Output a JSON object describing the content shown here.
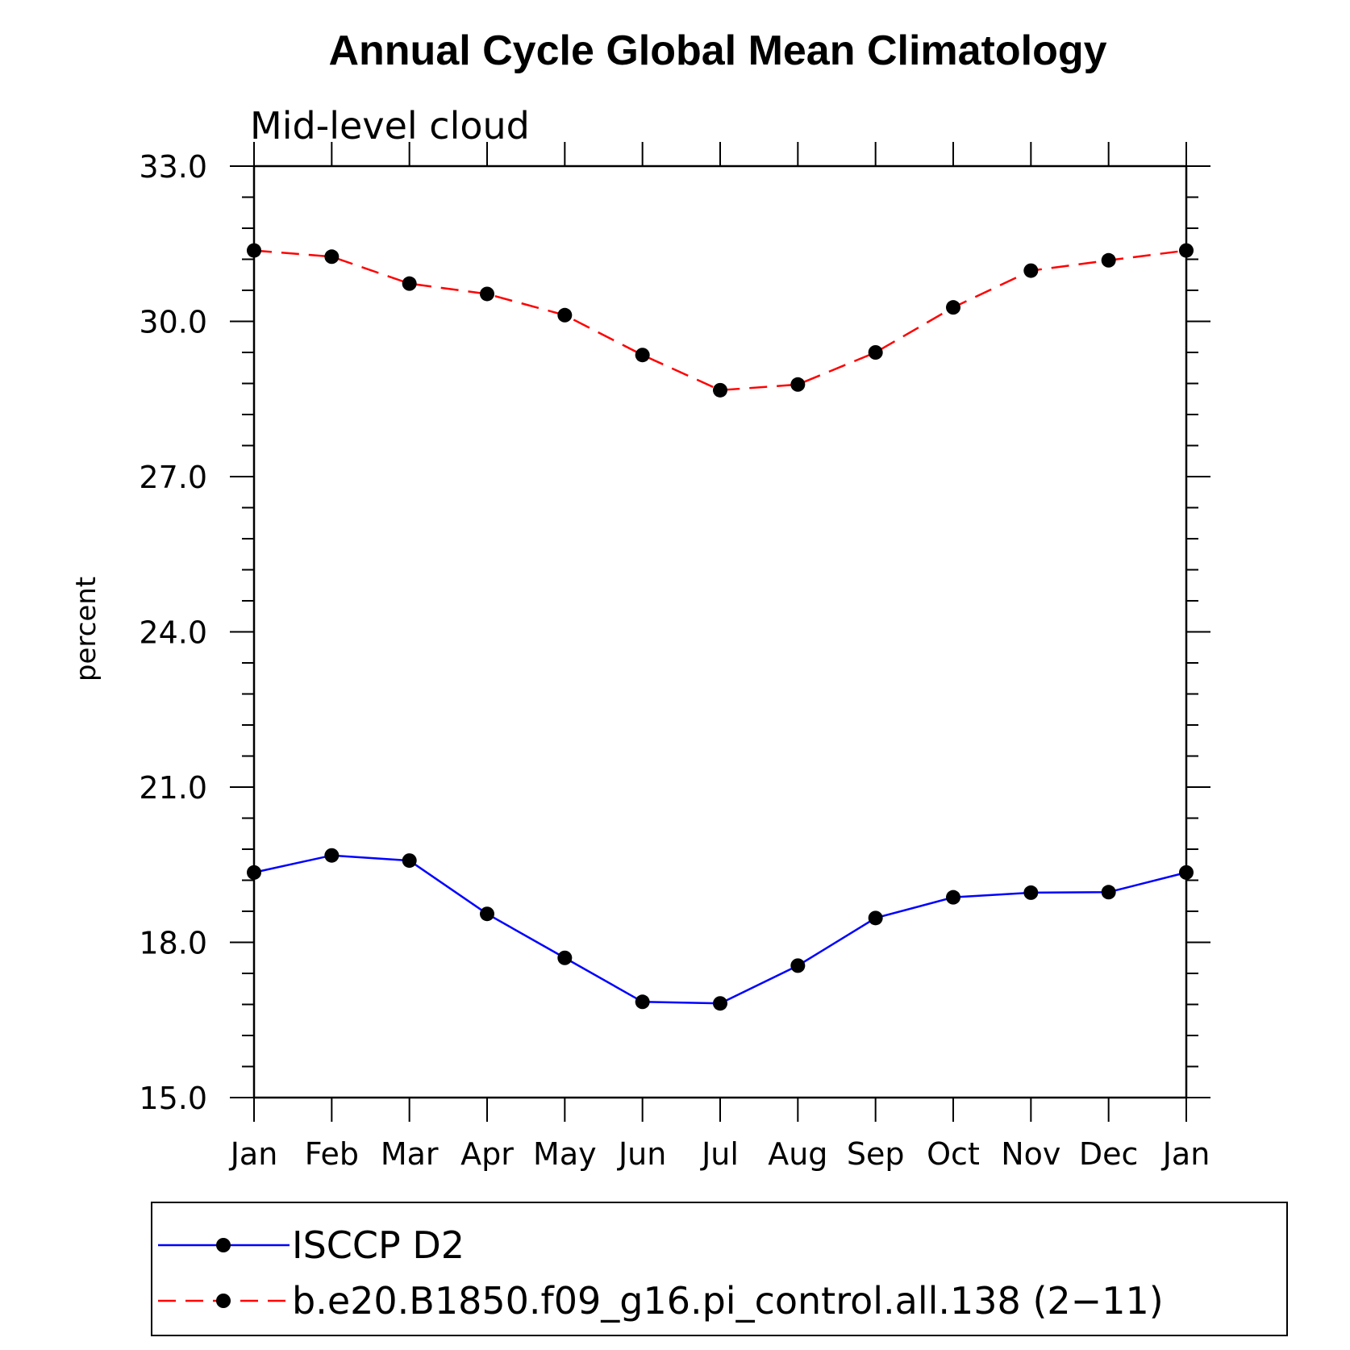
{
  "chart_data": {
    "type": "line",
    "title": "Annual Cycle Global Mean Climatology",
    "subtitle": "Mid-level cloud",
    "xlabel": "",
    "ylabel": "percent",
    "ylim": [
      15.0,
      33.0
    ],
    "yticks": [
      "15.0",
      "18.0",
      "21.0",
      "24.0",
      "27.0",
      "30.0",
      "33.0"
    ],
    "categories": [
      "Jan",
      "Feb",
      "Mar",
      "Apr",
      "May",
      "Jun",
      "Jul",
      "Aug",
      "Sep",
      "Oct",
      "Nov",
      "Dec",
      "Jan"
    ],
    "grid": false,
    "legend_position": "bottom",
    "series": [
      {
        "name": "ISCCP D2",
        "color": "#0000ff",
        "line_style": "solid",
        "marker": "filled-circle",
        "values": [
          19.35,
          19.68,
          19.58,
          18.55,
          17.7,
          16.85,
          16.82,
          17.55,
          18.47,
          18.87,
          18.96,
          18.97,
          19.35
        ]
      },
      {
        "name": "b.e20.B1850.f09_g16.pi_control.all.138 (2−11)",
        "color": "#ff0000",
        "line_style": "dashed",
        "marker": "filled-circle",
        "values": [
          31.37,
          31.25,
          30.73,
          30.53,
          30.12,
          29.35,
          28.67,
          28.78,
          29.4,
          30.27,
          30.98,
          31.18,
          31.37
        ]
      }
    ]
  }
}
